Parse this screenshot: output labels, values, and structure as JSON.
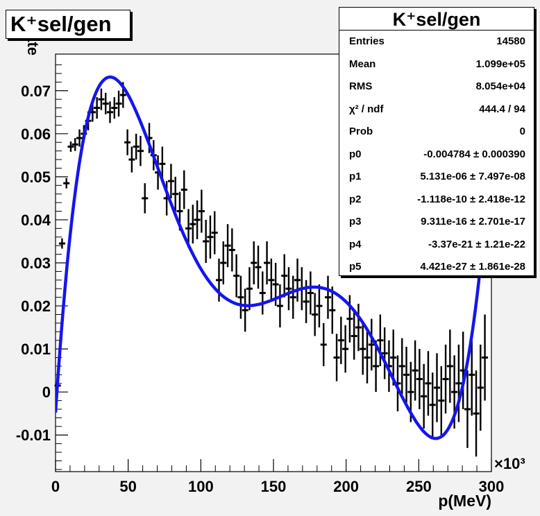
{
  "chart_data": {
    "type": "scatter",
    "title": "K⁺sel/gen",
    "xlabel": "p(MeV)",
    "ylabel": "rate",
    "x_exponent": "×10³",
    "xlim": [
      0,
      300
    ],
    "ylim": [
      -0.0185,
      0.0785
    ],
    "x_ticks": [
      0,
      50,
      100,
      150,
      200,
      250,
      300
    ],
    "y_ticks": [
      -0.01,
      0,
      0.01,
      0.02,
      0.03,
      0.04,
      0.05,
      0.06,
      0.07
    ],
    "x_tick_labels": [
      "0",
      "50",
      "100",
      "150",
      "200",
      "250",
      "300"
    ],
    "y_tick_labels": [
      "-0.01",
      "0",
      "0.01",
      "0.02",
      "0.03",
      "0.04",
      "0.05",
      "0.06",
      "0.07"
    ],
    "points": [
      {
        "x": 1.5,
        "y": 0.0015,
        "e": 0.0015
      },
      {
        "x": 4.5,
        "y": 0.0345,
        "e": 0.0012
      },
      {
        "x": 7.5,
        "y": 0.0485,
        "e": 0.0012
      },
      {
        "x": 10.5,
        "y": 0.057,
        "e": 0.0012
      },
      {
        "x": 13.5,
        "y": 0.0575,
        "e": 0.0015
      },
      {
        "x": 16.5,
        "y": 0.059,
        "e": 0.002
      },
      {
        "x": 19.5,
        "y": 0.06,
        "e": 0.002
      },
      {
        "x": 22.5,
        "y": 0.063,
        "e": 0.0022
      },
      {
        "x": 25.5,
        "y": 0.065,
        "e": 0.0022
      },
      {
        "x": 28.5,
        "y": 0.066,
        "e": 0.0025
      },
      {
        "x": 31.5,
        "y": 0.068,
        "e": 0.0025
      },
      {
        "x": 34.5,
        "y": 0.067,
        "e": 0.0025
      },
      {
        "x": 37.5,
        "y": 0.065,
        "e": 0.0025
      },
      {
        "x": 40.5,
        "y": 0.066,
        "e": 0.0025
      },
      {
        "x": 43.5,
        "y": 0.067,
        "e": 0.003
      },
      {
        "x": 46.5,
        "y": 0.069,
        "e": 0.003
      },
      {
        "x": 49.5,
        "y": 0.058,
        "e": 0.003
      },
      {
        "x": 52.5,
        "y": 0.054,
        "e": 0.003
      },
      {
        "x": 55.5,
        "y": 0.057,
        "e": 0.003
      },
      {
        "x": 58.5,
        "y": 0.056,
        "e": 0.0035
      },
      {
        "x": 61.5,
        "y": 0.045,
        "e": 0.0035
      },
      {
        "x": 64.5,
        "y": 0.059,
        "e": 0.0035
      },
      {
        "x": 67.5,
        "y": 0.055,
        "e": 0.0035
      },
      {
        "x": 70.5,
        "y": 0.051,
        "e": 0.004
      },
      {
        "x": 73.5,
        "y": 0.053,
        "e": 0.004
      },
      {
        "x": 76.5,
        "y": 0.045,
        "e": 0.004
      },
      {
        "x": 79.5,
        "y": 0.049,
        "e": 0.004
      },
      {
        "x": 82.5,
        "y": 0.046,
        "e": 0.004
      },
      {
        "x": 85.5,
        "y": 0.042,
        "e": 0.0045
      },
      {
        "x": 88.5,
        "y": 0.047,
        "e": 0.0045
      },
      {
        "x": 91.5,
        "y": 0.038,
        "e": 0.0045
      },
      {
        "x": 94.5,
        "y": 0.039,
        "e": 0.0045
      },
      {
        "x": 97.5,
        "y": 0.04,
        "e": 0.0045
      },
      {
        "x": 100.5,
        "y": 0.042,
        "e": 0.005
      },
      {
        "x": 103.5,
        "y": 0.035,
        "e": 0.005
      },
      {
        "x": 106.5,
        "y": 0.036,
        "e": 0.005
      },
      {
        "x": 109.5,
        "y": 0.037,
        "e": 0.005
      },
      {
        "x": 112.5,
        "y": 0.026,
        "e": 0.005
      },
      {
        "x": 115.5,
        "y": 0.03,
        "e": 0.005
      },
      {
        "x": 118.5,
        "y": 0.034,
        "e": 0.005
      },
      {
        "x": 121.5,
        "y": 0.033,
        "e": 0.005
      },
      {
        "x": 124.5,
        "y": 0.027,
        "e": 0.005
      },
      {
        "x": 127.5,
        "y": 0.022,
        "e": 0.005
      },
      {
        "x": 130.5,
        "y": 0.019,
        "e": 0.005
      },
      {
        "x": 133.5,
        "y": 0.024,
        "e": 0.005
      },
      {
        "x": 136.5,
        "y": 0.03,
        "e": 0.005
      },
      {
        "x": 139.5,
        "y": 0.029,
        "e": 0.005
      },
      {
        "x": 142.5,
        "y": 0.023,
        "e": 0.005
      },
      {
        "x": 145.5,
        "y": 0.03,
        "e": 0.005
      },
      {
        "x": 148.5,
        "y": 0.026,
        "e": 0.005
      },
      {
        "x": 151.5,
        "y": 0.025,
        "e": 0.005
      },
      {
        "x": 154.5,
        "y": 0.02,
        "e": 0.005
      },
      {
        "x": 157.5,
        "y": 0.027,
        "e": 0.005
      },
      {
        "x": 160.5,
        "y": 0.024,
        "e": 0.005
      },
      {
        "x": 163.5,
        "y": 0.022,
        "e": 0.005
      },
      {
        "x": 166.5,
        "y": 0.026,
        "e": 0.005
      },
      {
        "x": 169.5,
        "y": 0.024,
        "e": 0.005
      },
      {
        "x": 172.5,
        "y": 0.021,
        "e": 0.005
      },
      {
        "x": 175.5,
        "y": 0.023,
        "e": 0.005
      },
      {
        "x": 178.5,
        "y": 0.018,
        "e": 0.005
      },
      {
        "x": 181.5,
        "y": 0.02,
        "e": 0.005
      },
      {
        "x": 184.5,
        "y": 0.011,
        "e": 0.005
      },
      {
        "x": 187.5,
        "y": 0.022,
        "e": 0.005
      },
      {
        "x": 190.5,
        "y": 0.019,
        "e": 0.0055
      },
      {
        "x": 193.5,
        "y": 0.008,
        "e": 0.0055
      },
      {
        "x": 196.5,
        "y": 0.012,
        "e": 0.0055
      },
      {
        "x": 199.5,
        "y": 0.01,
        "e": 0.0055
      },
      {
        "x": 202.5,
        "y": 0.017,
        "e": 0.0055
      },
      {
        "x": 205.5,
        "y": 0.013,
        "e": 0.0055
      },
      {
        "x": 208.5,
        "y": 0.015,
        "e": 0.0055
      },
      {
        "x": 211.5,
        "y": 0.01,
        "e": 0.006
      },
      {
        "x": 214.5,
        "y": 0.008,
        "e": 0.006
      },
      {
        "x": 217.5,
        "y": 0.011,
        "e": 0.006
      },
      {
        "x": 220.5,
        "y": 0.006,
        "e": 0.006
      },
      {
        "x": 223.5,
        "y": 0.012,
        "e": 0.006
      },
      {
        "x": 226.5,
        "y": 0.009,
        "e": 0.006
      },
      {
        "x": 229.5,
        "y": 0.006,
        "e": 0.006
      },
      {
        "x": 232.5,
        "y": 0.008,
        "e": 0.0065
      },
      {
        "x": 235.5,
        "y": 0.002,
        "e": 0.0065
      },
      {
        "x": 238.5,
        "y": 0.006,
        "e": 0.0065
      },
      {
        "x": 241.5,
        "y": 0.004,
        "e": 0.0065
      },
      {
        "x": 244.5,
        "y": 0.0,
        "e": 0.007
      },
      {
        "x": 247.5,
        "y": 0.005,
        "e": 0.007
      },
      {
        "x": 250.5,
        "y": 0.003,
        "e": 0.007
      },
      {
        "x": 253.5,
        "y": -0.001,
        "e": 0.0075
      },
      {
        "x": 256.5,
        "y": 0.002,
        "e": 0.0075
      },
      {
        "x": 259.5,
        "y": -0.003,
        "e": 0.0075
      },
      {
        "x": 262.5,
        "y": 0.001,
        "e": 0.008
      },
      {
        "x": 265.5,
        "y": -0.002,
        "e": 0.008
      },
      {
        "x": 268.5,
        "y": 0.003,
        "e": 0.008
      },
      {
        "x": 271.5,
        "y": 0.006,
        "e": 0.0085
      },
      {
        "x": 274.5,
        "y": 0.0,
        "e": 0.0085
      },
      {
        "x": 277.5,
        "y": 0.002,
        "e": 0.009
      },
      {
        "x": 280.5,
        "y": 0.005,
        "e": 0.009
      },
      {
        "x": 283.5,
        "y": -0.004,
        "e": 0.009
      },
      {
        "x": 286.5,
        "y": 0.004,
        "e": 0.0095
      },
      {
        "x": 289.5,
        "y": -0.005,
        "e": 0.01
      },
      {
        "x": 292.5,
        "y": 0.001,
        "e": 0.01
      },
      {
        "x": 295.5,
        "y": 0.008,
        "e": 0.01
      }
    ],
    "fit": {
      "function": "pol5",
      "color": "#1515ee",
      "x_range": [
        0,
        300
      ],
      "params": [
        -0.004784,
        5.131e-06,
        -1.118e-10,
        9.311e-16,
        -3.37e-21,
        4.421e-27
      ]
    },
    "colors": {
      "points": "#000000",
      "fit": "#1515ee",
      "frame_background": "#f2f2f2",
      "plot_background": "#ffffff"
    }
  },
  "stats_box": {
    "title": "K⁺sel/gen",
    "rows": [
      {
        "label": "Entries",
        "value": "14580"
      },
      {
        "label": "Mean",
        "value": "1.099e+05"
      },
      {
        "label": "RMS",
        "value": "8.054e+04"
      },
      {
        "label": "χ² / ndf",
        "value": "444.4 / 94"
      },
      {
        "label": "Prob",
        "value": "0"
      },
      {
        "label": "p0",
        "value": "-0.004784 ± 0.000390"
      },
      {
        "label": "p1",
        "value": "5.131e-06 ± 7.497e-08"
      },
      {
        "label": "p2",
        "value": "-1.118e-10 ± 2.418e-12"
      },
      {
        "label": "p3",
        "value": "9.311e-16 ± 2.701e-17"
      },
      {
        "label": "p4",
        "value": "-3.37e-21 ± 1.21e-22"
      },
      {
        "label": "p5",
        "value": "4.421e-27 ± 1.861e-28"
      }
    ]
  }
}
